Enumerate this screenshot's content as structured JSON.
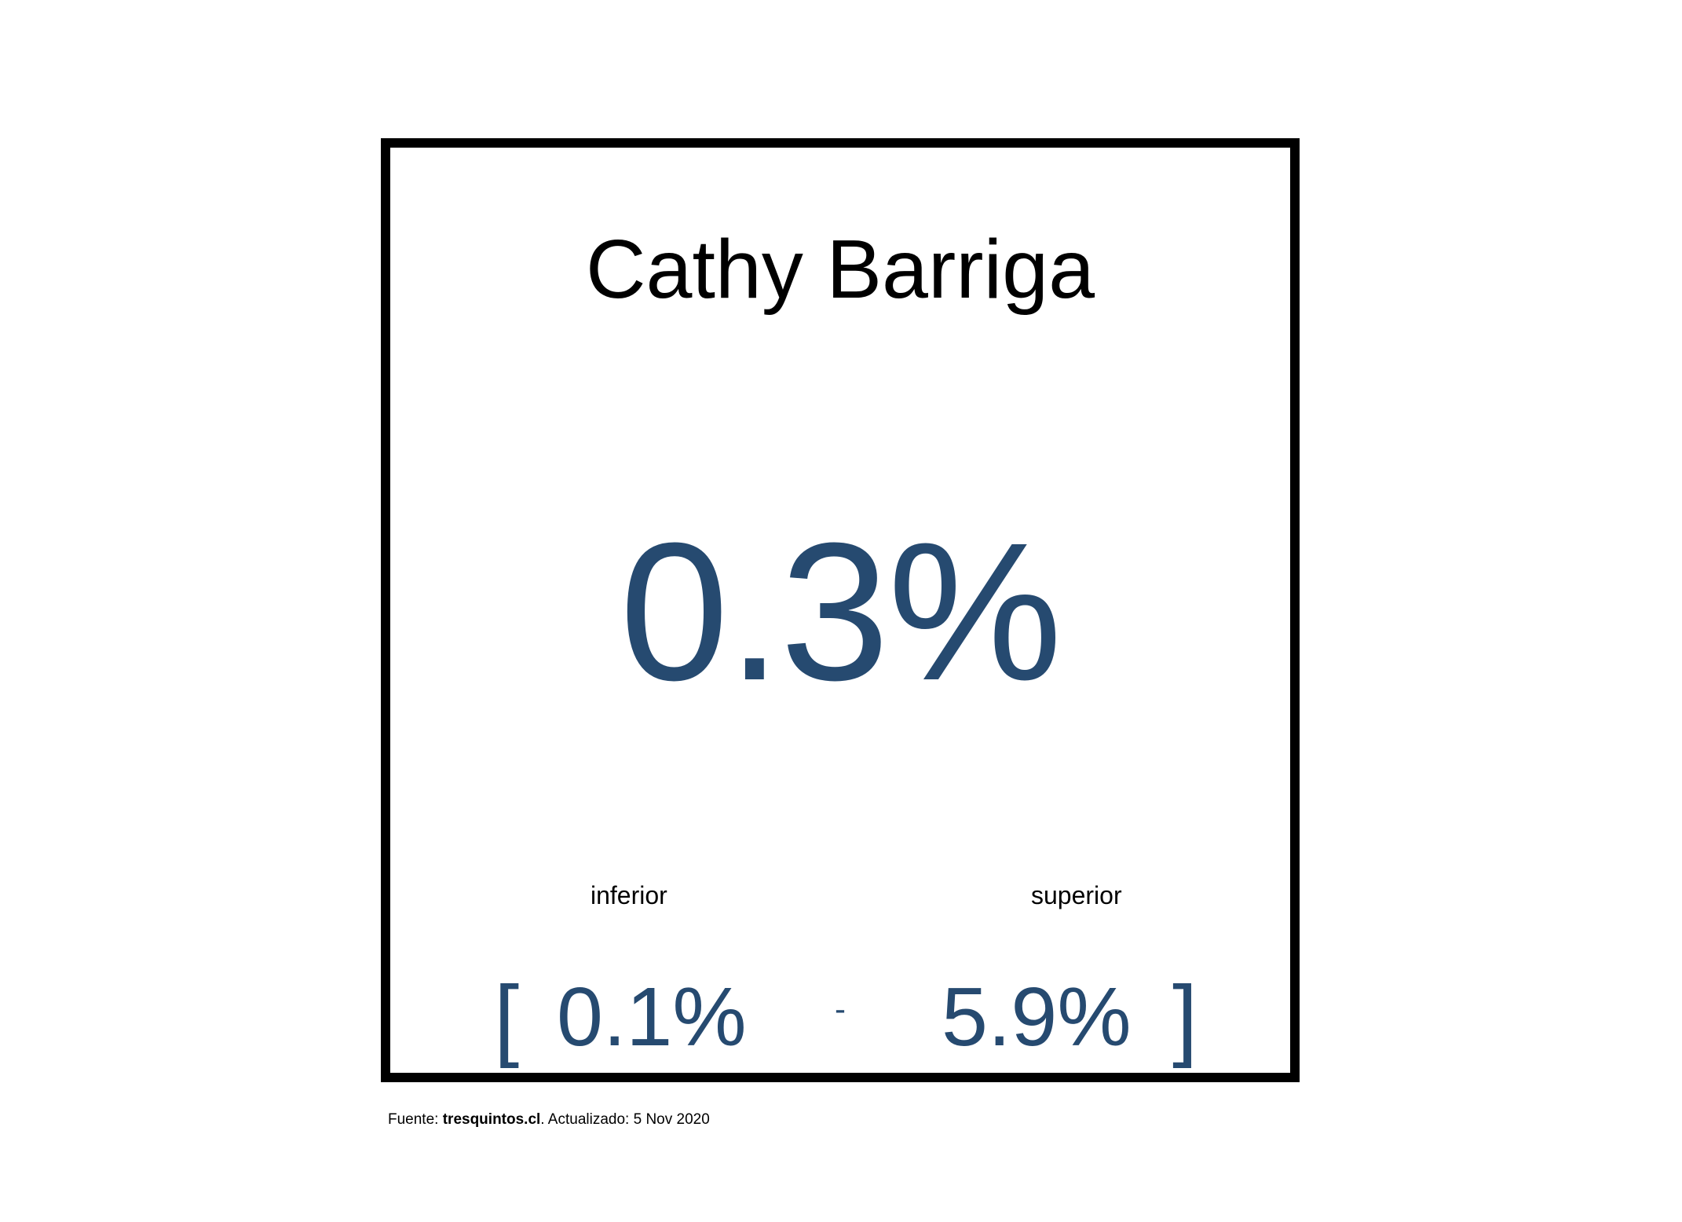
{
  "colors": {
    "value": "#264a70",
    "text": "#000000",
    "border": "#000000"
  },
  "card": {
    "title": "Cathy Barriga",
    "value": "0.3%",
    "interval": {
      "lower_label": "inferior",
      "upper_label": "superior",
      "open_bracket": "[",
      "lower": "0.1%",
      "separator": "-",
      "upper": "5.9%",
      "close_bracket": "]"
    }
  },
  "footer": {
    "prefix": "Fuente: ",
    "source": "tresquintos.cl",
    "suffix": ". Actualizado: 5 Nov 2020"
  }
}
